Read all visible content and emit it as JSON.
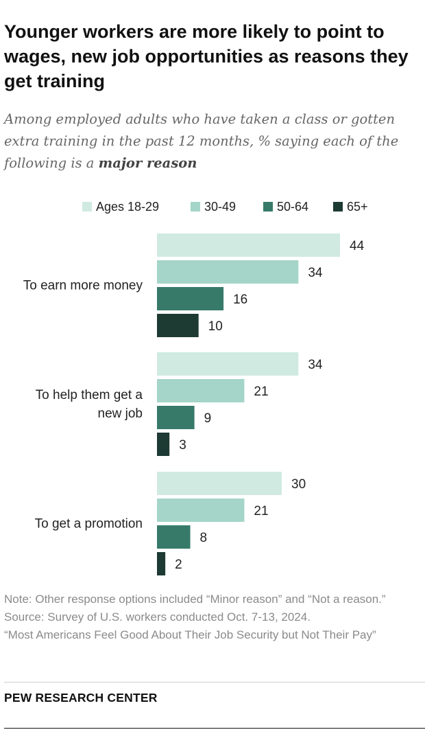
{
  "header": {
    "title": "Younger workers are more likely to point to wages, new job opportunities as reasons they get training",
    "subtitle_prefix": "Among employed adults who have taken a class or gotten extra training in the past 12 months, % saying each of the following is a ",
    "subtitle_emphasis": "major reason"
  },
  "chart_data": {
    "type": "bar",
    "orientation": "horizontal",
    "categories": [
      "To earn more money",
      "To help them get a new job",
      "To get a promotion"
    ],
    "series": [
      {
        "name": "Ages 18-29",
        "color": "#d0eae2",
        "values": [
          44,
          34,
          30
        ]
      },
      {
        "name": "30-49",
        "color": "#a4d5c8",
        "values": [
          34,
          21,
          21
        ]
      },
      {
        "name": "50-64",
        "color": "#377a6a",
        "values": [
          16,
          9,
          8
        ]
      },
      {
        "name": "65+",
        "color": "#1d3a33",
        "values": [
          10,
          3,
          2
        ]
      }
    ],
    "legend_position": "top",
    "grid": false,
    "data_labels": true,
    "xlim": [
      0,
      44
    ]
  },
  "notes": {
    "note": "Note: Other response options included “Minor reason” and “Not a reason.”",
    "source": "Source: Survey of U.S. workers conducted Oct. 7-13, 2024.",
    "report": "“Most Americans Feel Good About Their Job Security but Not Their Pay”"
  },
  "footer": {
    "brand": "PEW RESEARCH CENTER"
  }
}
